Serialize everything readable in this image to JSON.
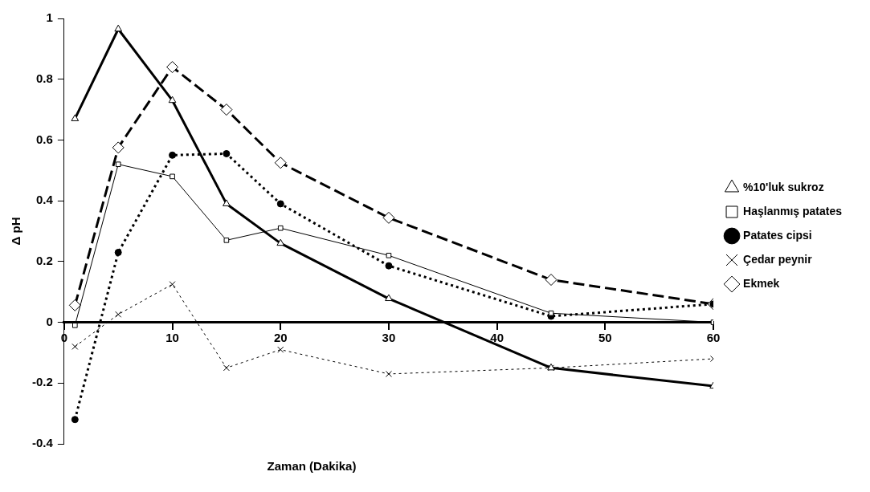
{
  "chart_data": {
    "type": "line",
    "xlabel": "Zaman (Dakika)",
    "ylabel": "Δ pH",
    "x": [
      1,
      5,
      10,
      15,
      20,
      30,
      45,
      60
    ],
    "series": [
      {
        "name": "%10'luk sukroz",
        "color": "#000000",
        "marker": "triangle",
        "line_style": "solid",
        "values": [
          0.67,
          0.965,
          0.73,
          0.39,
          0.26,
          0.078,
          -0.15,
          -0.21
        ]
      },
      {
        "name": "Haşlanmış patates",
        "color": "#000000",
        "marker": "square",
        "line_style": "solid",
        "values": [
          -0.01,
          0.52,
          0.48,
          0.27,
          0.31,
          0.22,
          0.03,
          0
        ]
      },
      {
        "name": "Patates cipsi",
        "color": "#000000",
        "marker": "circle",
        "line_style": "dotted",
        "values": [
          -0.32,
          0.23,
          0.55,
          0.555,
          0.39,
          0.186,
          0.02,
          0.06
        ]
      },
      {
        "name": "Çedar peynir",
        "color": "#000000",
        "marker": "cross",
        "line_style": "dotted",
        "values": [
          -0.08,
          0.026,
          0.125,
          -0.15,
          -0.09,
          -0.17,
          -0.15,
          -0.12
        ]
      },
      {
        "name": "Ekmek",
        "color": "#000000",
        "marker": "diamond",
        "line_style": "dashed",
        "values": [
          0.056,
          0.575,
          0.84,
          0.7,
          0.525,
          0.344,
          0.14,
          0.06
        ]
      }
    ],
    "xlim": [
      0,
      60
    ],
    "xticks": [
      0,
      10,
      20,
      30,
      40,
      50,
      60
    ],
    "ylim": [
      -0.4,
      1
    ],
    "yticks": [
      -0.4,
      -0.2,
      0,
      0.2,
      0.4,
      0.6,
      0.8,
      1
    ],
    "grid": false,
    "legend": "right"
  }
}
